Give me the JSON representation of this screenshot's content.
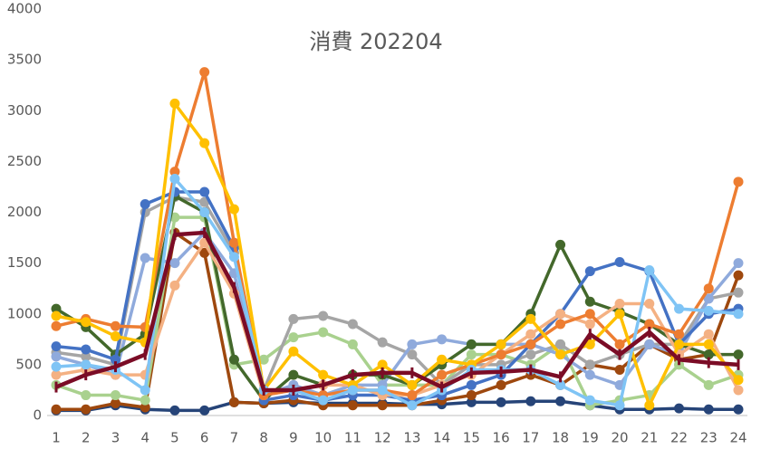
{
  "chart_data": {
    "type": "line",
    "title": "消費 202204",
    "x": [
      1,
      2,
      3,
      4,
      5,
      6,
      7,
      8,
      9,
      10,
      11,
      12,
      13,
      14,
      15,
      16,
      17,
      18,
      19,
      20,
      21,
      22,
      23,
      24
    ],
    "xlim": [
      1,
      24
    ],
    "xticks": [
      1,
      2,
      3,
      4,
      5,
      6,
      7,
      8,
      9,
      10,
      11,
      12,
      13,
      14,
      15,
      16,
      17,
      18,
      19,
      20,
      21,
      22,
      23,
      24
    ],
    "ylim": [
      0,
      4000
    ],
    "yticks": [
      0,
      500,
      1000,
      1500,
      2000,
      2500,
      3000,
      3500,
      4000
    ],
    "grid": false,
    "series": [
      {
        "color": "#264478",
        "values": [
          50,
          50,
          100,
          60,
          50,
          50,
          130,
          120,
          130,
          120,
          120,
          120,
          110,
          110,
          130,
          130,
          140,
          140,
          100,
          60,
          60,
          70,
          60,
          60
        ]
      },
      {
        "color": "#9E480E",
        "values": [
          60,
          60,
          120,
          80,
          1800,
          1600,
          130,
          120,
          150,
          100,
          100,
          100,
          100,
          150,
          200,
          300,
          400,
          300,
          500,
          450,
          700,
          550,
          600,
          1380
        ]
      },
      {
        "color": "#A9D18E",
        "values": [
          300,
          200,
          200,
          150,
          1950,
          1950,
          500,
          550,
          770,
          820,
          700,
          300,
          300,
          300,
          600,
          600,
          500,
          700,
          100,
          150,
          200,
          500,
          300,
          400
        ]
      },
      {
        "color": "#A5A5A5",
        "values": [
          620,
          580,
          500,
          2000,
          2150,
          2100,
          1600,
          250,
          950,
          980,
          900,
          720,
          600,
          300,
          500,
          500,
          600,
          700,
          500,
          600,
          700,
          700,
          1150,
          1210
        ]
      },
      {
        "color": "#8FAADC",
        "values": [
          580,
          500,
          400,
          1550,
          1500,
          1800,
          1400,
          200,
          300,
          200,
          300,
          300,
          700,
          750,
          700,
          700,
          700,
          600,
          400,
          300,
          700,
          600,
          1150,
          1500
        ]
      },
      {
        "color": "#43682B",
        "values": [
          1050,
          870,
          600,
          800,
          2160,
          2000,
          550,
          150,
          400,
          300,
          400,
          400,
          300,
          500,
          700,
          700,
          1000,
          1680,
          1120,
          1020,
          900,
          700,
          600,
          600
        ]
      },
      {
        "color": "#4472C4",
        "values": [
          680,
          650,
          550,
          2080,
          2200,
          2200,
          1650,
          150,
          200,
          150,
          200,
          200,
          150,
          200,
          300,
          400,
          700,
          1000,
          1420,
          1510,
          1420,
          700,
          1000,
          1050
        ]
      },
      {
        "color": "#F4B183",
        "values": [
          400,
          450,
          400,
          400,
          1280,
          1700,
          1200,
          200,
          250,
          300,
          300,
          200,
          200,
          300,
          400,
          600,
          800,
          1000,
          900,
          1100,
          1100,
          600,
          800,
          250
        ]
      },
      {
        "color": "#ED7D31",
        "values": [
          880,
          950,
          880,
          870,
          2400,
          3380,
          1700,
          200,
          250,
          200,
          250,
          250,
          200,
          400,
          500,
          600,
          700,
          900,
          1000,
          700,
          900,
          800,
          1250,
          2300
        ]
      },
      {
        "color": "#FFC000",
        "values": [
          980,
          920,
          780,
          720,
          3070,
          2680,
          2030,
          250,
          630,
          400,
          300,
          500,
          300,
          550,
          500,
          700,
          950,
          600,
          700,
          1000,
          100,
          700,
          700,
          350
        ]
      },
      {
        "color": "#7FC4F5",
        "values": [
          480,
          500,
          450,
          250,
          2330,
          2000,
          1560,
          250,
          250,
          150,
          250,
          250,
          100,
          250,
          450,
          450,
          450,
          300,
          150,
          100,
          1430,
          1050,
          1030,
          1000
        ]
      },
      {
        "color": "#7B0C26",
        "values": [
          280,
          400,
          480,
          600,
          1780,
          1800,
          1260,
          250,
          250,
          300,
          400,
          420,
          420,
          280,
          420,
          430,
          450,
          380,
          800,
          600,
          820,
          550,
          520,
          500
        ]
      }
    ]
  }
}
